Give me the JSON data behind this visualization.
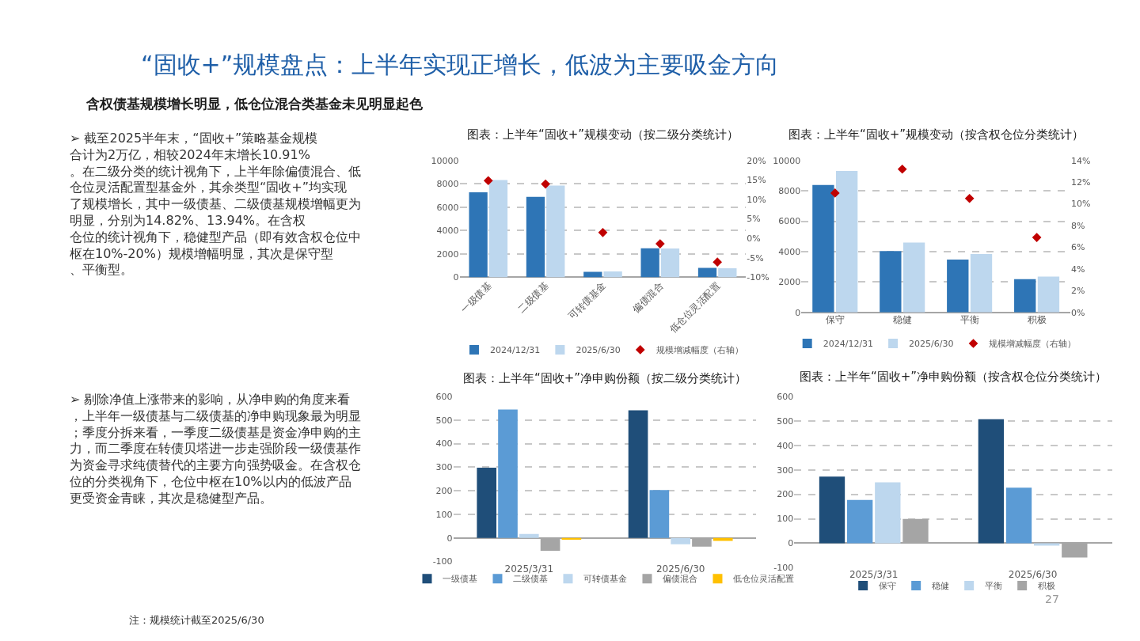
{
  "chart_data": [
    {
      "type": "other",
      "title": "“固收+”规模盘点：上半年实现正增长，低波为主要吸金方向",
      "subtitle": "含权债基规模增长明显，低仓位混合类基金未见明显起色",
      "annotations": [
        "➢ 截至2025半年末，“固收+”策略基金规模合计为2万亿，相较2024年末增长10.91%。在二级分类的统计视角下，上半年除偏债混合、低仓位灵活配置型基金外，其余类型“固收+”均实现了规模增长，其中一级债基、二级债基规模增幅更为明显，分别为14.82%、13.94%。在含权仓位的统计视角下，稳健型产品（即有效含权仓位中枢在10%-20%）规模增幅明显，其次是保守型、平衡型。",
        "➢ 剔除净值上涨带来的影响，从净申购的角度来看，上半年一级债基与二级债基的净申购现象最为明显；季度分拆来看，一季度二级债基是资金净申购的主力，而二季度在转债贝塔进一步走强阶段一级债基作为资金寻求纯债替代的主要方向强势吸金。在含权仓位的分类视角下，仓位中枢在10%以内的低波产品更受资金青睐，其次是稳健型产品。",
        "注：规模统计截至2025/6/30",
        "27"
      ]
    },
    {
      "type": "bar",
      "title": "图表：上半年“固收+”规模变动（按二级分类统计）",
      "categories": [
        "一级债基",
        "二级债基",
        "可转债基金",
        "偏债混合",
        "低仓位灵活配置"
      ],
      "series": [
        {
          "name": "2024/12/31",
          "color": "#2e75b6",
          "values": [
            7270,
            6885,
            474,
            2480,
            813
          ]
        },
        {
          "name": "2025/6/30",
          "color": "#bdd7ee",
          "values": [
            8330,
            7855,
            497,
            2460,
            767
          ]
        },
        {
          "name": "规模增减幅度（右轴）",
          "type": "scatter",
          "axis": "y2",
          "marker": "diamond",
          "color": "#c00000",
          "values": [
            14.82,
            13.94,
            1.5,
            -1.4,
            -6.1
          ]
        }
      ],
      "ylim": [
        0,
        10000
      ],
      "yticks": [
        0,
        2000,
        4000,
        6000,
        8000,
        10000
      ],
      "y2lim": [
        -10,
        20
      ],
      "y2ticks": [
        {
          "value": -10,
          "label": "-10%"
        },
        {
          "value": -5,
          "label": "-5%"
        },
        {
          "value": 0,
          "label": "0%"
        },
        {
          "value": 5,
          "label": "5%"
        },
        {
          "value": 10,
          "label": "10%"
        },
        {
          "value": 15,
          "label": "15%"
        },
        {
          "value": 20,
          "label": "20%"
        }
      ],
      "grid": "y",
      "legend": "bottom"
    },
    {
      "type": "bar",
      "title": "图表：上半年“固收+”规模变动（按含权仓位分类统计）",
      "categories": [
        "保守",
        "稳健",
        "平衡",
        "积极"
      ],
      "series": [
        {
          "name": "2024/12/31",
          "color": "#2e75b6",
          "values": [
            8390,
            4030,
            3480,
            2180
          ]
        },
        {
          "name": "2025/6/30",
          "color": "#bdd7ee",
          "values": [
            9310,
            4600,
            3840,
            2350
          ]
        },
        {
          "name": "规模增减幅度（右轴）",
          "type": "scatter",
          "axis": "y2",
          "marker": "diamond",
          "color": "#c00000",
          "values": [
            11.0,
            13.2,
            10.5,
            6.9
          ]
        }
      ],
      "ylim": [
        0,
        10000
      ],
      "yticks": [
        0,
        2000,
        4000,
        6000,
        8000,
        10000
      ],
      "y2lim": [
        0,
        14
      ],
      "y2ticks": [
        {
          "value": 0,
          "label": "0%"
        },
        {
          "value": 2,
          "label": "2%"
        },
        {
          "value": 4,
          "label": "4%"
        },
        {
          "value": 6,
          "label": "6%"
        },
        {
          "value": 8,
          "label": "8%"
        },
        {
          "value": 10,
          "label": "10%"
        },
        {
          "value": 12,
          "label": "12%"
        },
        {
          "value": 14,
          "label": "14%"
        }
      ],
      "grid": "y",
      "legend": "bottom"
    },
    {
      "type": "bar",
      "title": "图表：上半年“固收+”净申购份额（按二级分类统计）",
      "categories": [
        "2025/3/31",
        "2025/6/30"
      ],
      "series": [
        {
          "name": "一级债基",
          "color": "#1f4e79",
          "values": [
            298,
            541
          ]
        },
        {
          "name": "二级债基",
          "color": "#5b9bd5",
          "values": [
            544,
            203
          ]
        },
        {
          "name": "可转债基金",
          "color": "#bdd7ee",
          "values": [
            17,
            -27
          ]
        },
        {
          "name": "偏债混合",
          "color": "#a5a5a5",
          "values": [
            -55,
            -37
          ]
        },
        {
          "name": "低仓位灵活配置",
          "color": "#ffc000",
          "values": [
            -8,
            -13
          ]
        }
      ],
      "ylim": [
        -100,
        600
      ],
      "yticks": [
        -100,
        0,
        100,
        200,
        300,
        400,
        500,
        600
      ],
      "grid": "y",
      "legend": "bottom"
    },
    {
      "type": "bar",
      "title": "图表：上半年“固收+”净申购份额（按含权仓位分类统计）",
      "categories": [
        "2025/3/31",
        "2025/6/30"
      ],
      "series": [
        {
          "name": "保守",
          "color": "#1f4e79",
          "values": [
            272,
            507
          ]
        },
        {
          "name": "稳健",
          "color": "#5b9bd5",
          "values": [
            177,
            227
          ]
        },
        {
          "name": "平衡",
          "color": "#bdd7ee",
          "values": [
            249,
            -10
          ]
        },
        {
          "name": "积极",
          "color": "#a5a5a5",
          "values": [
            99,
            -58
          ]
        }
      ],
      "ylim": [
        -100,
        600
      ],
      "yticks": [
        -100,
        0,
        100,
        200,
        300,
        400,
        500,
        600
      ],
      "grid": "y",
      "legend": "bottom"
    }
  ]
}
